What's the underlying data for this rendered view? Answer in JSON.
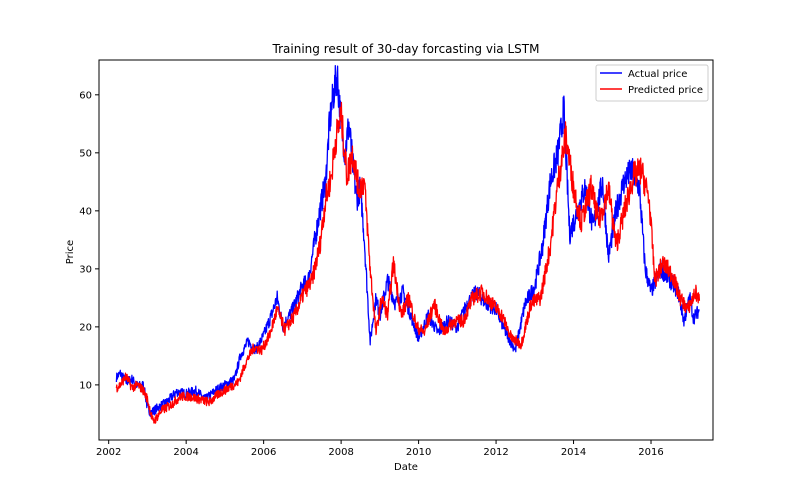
{
  "chart_data": {
    "type": "line",
    "title": "Training result of 30-day forcasting via LSTM",
    "xlabel": "Date",
    "ylabel": "Price",
    "xlim": [
      2001.75,
      2017.6
    ],
    "ylim": [
      0.5,
      66
    ],
    "x_ticks": [
      2002,
      2004,
      2006,
      2008,
      2010,
      2012,
      2014,
      2016
    ],
    "y_ticks": [
      10,
      20,
      30,
      40,
      50,
      60
    ],
    "grid": false,
    "legend_position": "top-right",
    "series": [
      {
        "name": "Actual price",
        "color": "#0000ff",
        "points": [
          [
            2002.2,
            11.3
          ],
          [
            2002.3,
            12.0
          ],
          [
            2002.45,
            10.5
          ],
          [
            2002.6,
            11.0
          ],
          [
            2002.75,
            9.8
          ],
          [
            2002.9,
            10.0
          ],
          [
            2003.0,
            6.0
          ],
          [
            2003.1,
            5.2
          ],
          [
            2003.25,
            6.0
          ],
          [
            2003.5,
            7.0
          ],
          [
            2003.75,
            8.8
          ],
          [
            2004.0,
            8.5
          ],
          [
            2004.25,
            9.0
          ],
          [
            2004.5,
            7.5
          ],
          [
            2004.75,
            9.0
          ],
          [
            2005.0,
            10.0
          ],
          [
            2005.25,
            11.0
          ],
          [
            2005.4,
            15.0
          ],
          [
            2005.6,
            17.5
          ],
          [
            2005.8,
            16.0
          ],
          [
            2006.0,
            18.5
          ],
          [
            2006.2,
            22.0
          ],
          [
            2006.35,
            25.0
          ],
          [
            2006.5,
            20.0
          ],
          [
            2006.75,
            23.0
          ],
          [
            2007.0,
            27.0
          ],
          [
            2007.15,
            28.0
          ],
          [
            2007.3,
            34.0
          ],
          [
            2007.45,
            40.0
          ],
          [
            2007.6,
            45.0
          ],
          [
            2007.7,
            55.0
          ],
          [
            2007.8,
            60.0
          ],
          [
            2007.9,
            63.5
          ],
          [
            2008.0,
            55.0
          ],
          [
            2008.1,
            50.0
          ],
          [
            2008.2,
            55.0
          ],
          [
            2008.3,
            48.0
          ],
          [
            2008.4,
            42.0
          ],
          [
            2008.5,
            44.0
          ],
          [
            2008.6,
            35.0
          ],
          [
            2008.75,
            17.5
          ],
          [
            2008.9,
            25.0
          ],
          [
            2009.0,
            22.0
          ],
          [
            2009.2,
            28.0
          ],
          [
            2009.4,
            24.0
          ],
          [
            2009.6,
            26.0
          ],
          [
            2009.8,
            22.0
          ],
          [
            2010.0,
            18.0
          ],
          [
            2010.25,
            22.0
          ],
          [
            2010.5,
            19.0
          ],
          [
            2010.75,
            21.0
          ],
          [
            2011.0,
            20.0
          ],
          [
            2011.25,
            24.0
          ],
          [
            2011.5,
            26.0
          ],
          [
            2011.75,
            24.0
          ],
          [
            2012.0,
            23.0
          ],
          [
            2012.25,
            19.0
          ],
          [
            2012.5,
            16.0
          ],
          [
            2012.75,
            24.0
          ],
          [
            2013.0,
            27.0
          ],
          [
            2013.2,
            34.0
          ],
          [
            2013.4,
            45.0
          ],
          [
            2013.6,
            50.0
          ],
          [
            2013.75,
            57.5
          ],
          [
            2013.9,
            36.0
          ],
          [
            2014.1,
            40.0
          ],
          [
            2014.3,
            44.0
          ],
          [
            2014.5,
            37.0
          ],
          [
            2014.75,
            45.0
          ],
          [
            2014.9,
            32.0
          ],
          [
            2015.1,
            40.0
          ],
          [
            2015.3,
            45.0
          ],
          [
            2015.5,
            47.0
          ],
          [
            2015.7,
            44.0
          ],
          [
            2015.85,
            30.0
          ],
          [
            2016.0,
            26.0
          ],
          [
            2016.25,
            30.0
          ],
          [
            2016.5,
            28.0
          ],
          [
            2016.7,
            26.0
          ],
          [
            2016.85,
            21.0
          ],
          [
            2017.0,
            25.0
          ],
          [
            2017.1,
            21.5
          ],
          [
            2017.25,
            23.0
          ]
        ]
      },
      {
        "name": "Predicted price",
        "color": "#ff0000",
        "points": [
          [
            2002.2,
            9.5
          ],
          [
            2002.3,
            10.0
          ],
          [
            2002.45,
            11.5
          ],
          [
            2002.6,
            9.5
          ],
          [
            2002.75,
            10.0
          ],
          [
            2002.9,
            9.0
          ],
          [
            2003.0,
            7.5
          ],
          [
            2003.15,
            3.5
          ],
          [
            2003.35,
            5.5
          ],
          [
            2003.6,
            6.5
          ],
          [
            2003.85,
            8.0
          ],
          [
            2004.1,
            8.0
          ],
          [
            2004.35,
            7.5
          ],
          [
            2004.6,
            7.0
          ],
          [
            2004.85,
            8.5
          ],
          [
            2005.1,
            9.5
          ],
          [
            2005.35,
            10.5
          ],
          [
            2005.55,
            14.0
          ],
          [
            2005.75,
            16.5
          ],
          [
            2005.95,
            16.0
          ],
          [
            2006.15,
            18.5
          ],
          [
            2006.35,
            23.0
          ],
          [
            2006.55,
            19.5
          ],
          [
            2006.8,
            22.0
          ],
          [
            2007.05,
            26.0
          ],
          [
            2007.25,
            28.0
          ],
          [
            2007.45,
            34.0
          ],
          [
            2007.6,
            42.0
          ],
          [
            2007.75,
            46.0
          ],
          [
            2007.85,
            52.0
          ],
          [
            2008.0,
            56.5
          ],
          [
            2008.15,
            46.0
          ],
          [
            2008.3,
            50.0
          ],
          [
            2008.45,
            44.0
          ],
          [
            2008.6,
            45.0
          ],
          [
            2008.75,
            30.0
          ],
          [
            2008.9,
            19.0
          ],
          [
            2009.05,
            25.0
          ],
          [
            2009.2,
            22.0
          ],
          [
            2009.35,
            31.0
          ],
          [
            2009.55,
            22.0
          ],
          [
            2009.75,
            25.0
          ],
          [
            2009.95,
            20.0
          ],
          [
            2010.15,
            19.0
          ],
          [
            2010.4,
            24.0
          ],
          [
            2010.65,
            19.0
          ],
          [
            2010.9,
            21.0
          ],
          [
            2011.15,
            21.0
          ],
          [
            2011.4,
            25.0
          ],
          [
            2011.65,
            26.0
          ],
          [
            2011.9,
            24.0
          ],
          [
            2012.15,
            22.0
          ],
          [
            2012.4,
            18.0
          ],
          [
            2012.65,
            17.0
          ],
          [
            2012.9,
            24.0
          ],
          [
            2013.15,
            25.0
          ],
          [
            2013.4,
            34.0
          ],
          [
            2013.6,
            45.0
          ],
          [
            2013.8,
            53.0
          ],
          [
            2014.0,
            44.0
          ],
          [
            2014.2,
            38.0
          ],
          [
            2014.45,
            44.0
          ],
          [
            2014.65,
            38.0
          ],
          [
            2014.9,
            44.0
          ],
          [
            2015.1,
            34.0
          ],
          [
            2015.35,
            41.0
          ],
          [
            2015.55,
            46.0
          ],
          [
            2015.75,
            47.0
          ],
          [
            2015.95,
            42.0
          ],
          [
            2016.1,
            28.0
          ],
          [
            2016.3,
            31.0
          ],
          [
            2016.55,
            29.0
          ],
          [
            2016.75,
            25.0
          ],
          [
            2016.95,
            23.0
          ],
          [
            2017.15,
            26.0
          ],
          [
            2017.25,
            24.5
          ]
        ]
      }
    ]
  }
}
